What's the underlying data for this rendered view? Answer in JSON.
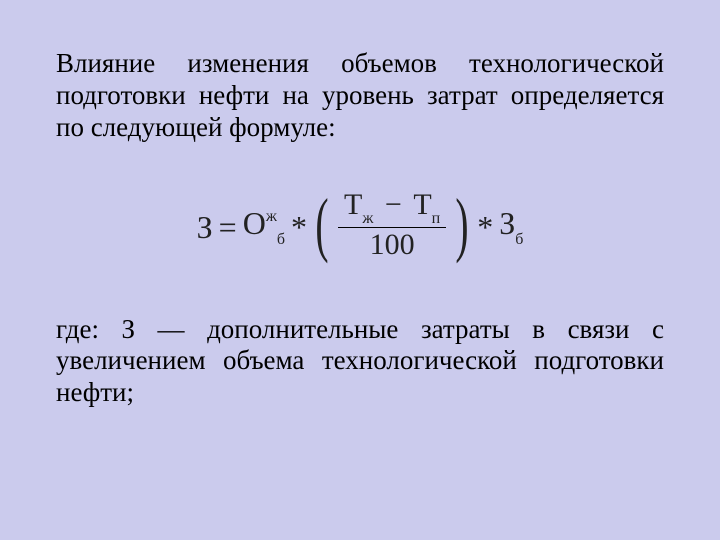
{
  "text": {
    "para1": "Влияние изменения объемов технологической подготовки нефти на уровень затрат определяется по следующей формуле:",
    "para2": "где: З — дополнительные затраты в связи с увеличением объема технологической подготовки нефти;"
  },
  "formula": {
    "colors": {
      "text": "#000000",
      "background": "#cbcbed"
    },
    "font_family": "Times New Roman",
    "font_size_main": 32,
    "font_size_script": 16,
    "lhs": {
      "sym": "З",
      "eq": "="
    },
    "term1": {
      "base": "О",
      "sup": "ж",
      "sub": "б"
    },
    "op1": "*",
    "frac": {
      "num": {
        "a": {
          "base": "Т",
          "sub": "ж"
        },
        "minus": "−",
        "b": {
          "base": "Т",
          "sub": "п"
        }
      },
      "den": "100"
    },
    "op2": "*",
    "term2": {
      "base": "З",
      "sub": "б"
    }
  }
}
